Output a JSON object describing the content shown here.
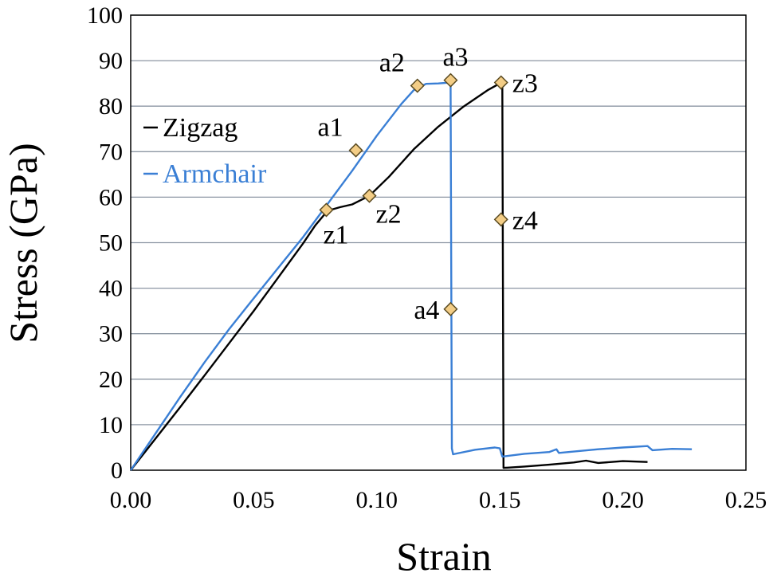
{
  "chart_data": {
    "type": "line",
    "title": "",
    "xlabel": "Strain",
    "ylabel": "Stress (GPa)",
    "xlim": [
      0,
      0.25
    ],
    "ylim": [
      0,
      100
    ],
    "xticks": [
      "0.00",
      "0.05",
      "0.10",
      "0.15",
      "0.20",
      "0.25"
    ],
    "yticks": [
      "0",
      "10",
      "20",
      "30",
      "40",
      "50",
      "60",
      "70",
      "80",
      "90",
      "100"
    ],
    "grid": "horizontal",
    "legend_position": "left-middle",
    "series": [
      {
        "name": "Zigzag",
        "color": "#000000",
        "points": [
          [
            0,
            0
          ],
          [
            0.01,
            6.9
          ],
          [
            0.02,
            13.8
          ],
          [
            0.03,
            20.8
          ],
          [
            0.04,
            27.9
          ],
          [
            0.05,
            35.0
          ],
          [
            0.06,
            42.4
          ],
          [
            0.07,
            49.8
          ],
          [
            0.075,
            53.8
          ],
          [
            0.08,
            57.0
          ],
          [
            0.085,
            57.8
          ],
          [
            0.09,
            58.4
          ],
          [
            0.097,
            60.3
          ],
          [
            0.105,
            64.5
          ],
          [
            0.115,
            70.5
          ],
          [
            0.125,
            75.5
          ],
          [
            0.135,
            79.8
          ],
          [
            0.145,
            83.5
          ],
          [
            0.151,
            85.3
          ],
          [
            0.1515,
            0.5
          ],
          [
            0.16,
            0.8
          ],
          [
            0.17,
            1.2
          ],
          [
            0.18,
            1.7
          ],
          [
            0.185,
            2.1
          ],
          [
            0.19,
            1.6
          ],
          [
            0.2,
            2.0
          ],
          [
            0.21,
            1.8
          ]
        ]
      },
      {
        "name": "Armchair",
        "color": "#3a7fd5",
        "points": [
          [
            0,
            0
          ],
          [
            0.01,
            8.0
          ],
          [
            0.02,
            16.0
          ],
          [
            0.03,
            23.7
          ],
          [
            0.04,
            31.0
          ],
          [
            0.05,
            37.8
          ],
          [
            0.06,
            44.5
          ],
          [
            0.07,
            51.2
          ],
          [
            0.08,
            58.5
          ],
          [
            0.09,
            65.8
          ],
          [
            0.1,
            73.5
          ],
          [
            0.11,
            80.5
          ],
          [
            0.115,
            83.5
          ],
          [
            0.12,
            84.9
          ],
          [
            0.125,
            85.0
          ],
          [
            0.13,
            85.2
          ],
          [
            0.1305,
            4.8
          ],
          [
            0.131,
            3.5
          ],
          [
            0.14,
            4.5
          ],
          [
            0.148,
            5.0
          ],
          [
            0.15,
            4.8
          ],
          [
            0.151,
            3.0
          ],
          [
            0.16,
            3.6
          ],
          [
            0.17,
            4.0
          ],
          [
            0.173,
            4.6
          ],
          [
            0.174,
            3.8
          ],
          [
            0.19,
            4.6
          ],
          [
            0.2,
            5.0
          ],
          [
            0.21,
            5.3
          ],
          [
            0.212,
            4.4
          ],
          [
            0.22,
            4.7
          ],
          [
            0.228,
            4.6
          ]
        ]
      }
    ],
    "markers": [
      {
        "label": "a1",
        "x": 0.0915,
        "y": 70.3,
        "label_pos": "left-top"
      },
      {
        "label": "a2",
        "x": 0.1165,
        "y": 84.5,
        "label_pos": "left-top"
      },
      {
        "label": "a3",
        "x": 0.13,
        "y": 85.7,
        "label_pos": "right-top"
      },
      {
        "label": "a4",
        "x": 0.13,
        "y": 35.4,
        "label_pos": "left"
      },
      {
        "label": "z1",
        "x": 0.0795,
        "y": 57.2,
        "label_pos": "bottom"
      },
      {
        "label": "z2",
        "x": 0.097,
        "y": 60.3,
        "label_pos": "right-bottom"
      },
      {
        "label": "z3",
        "x": 0.1505,
        "y": 85.2,
        "label_pos": "right"
      },
      {
        "label": "z4",
        "x": 0.1505,
        "y": 55.1,
        "label_pos": "right"
      }
    ],
    "marker_fill": "#f3cd86",
    "marker_stroke": "#5a4a20"
  }
}
